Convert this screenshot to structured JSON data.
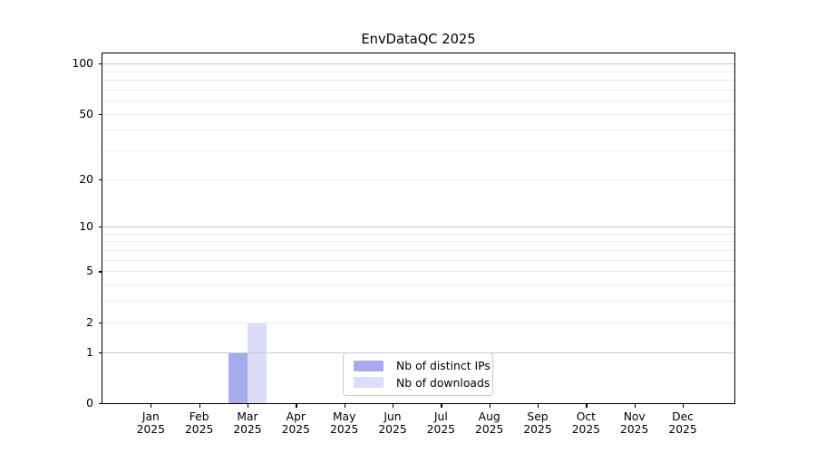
{
  "chart_data": {
    "type": "bar",
    "title": "EnvDataQC 2025",
    "categories": [
      "Jan 2025",
      "Feb 2025",
      "Mar 2025",
      "Apr 2025",
      "May 2025",
      "Jun 2025",
      "Jul 2025",
      "Aug 2025",
      "Sep 2025",
      "Oct 2025",
      "Nov 2025",
      "Dec 2025"
    ],
    "series": [
      {
        "name": "Nb of distinct IPs",
        "color": "#a8aaee",
        "values": [
          0,
          0,
          1,
          0,
          0,
          0,
          0,
          0,
          0,
          0,
          0,
          0
        ]
      },
      {
        "name": "Nb of downloads",
        "color": "#dcddf8",
        "values": [
          0,
          0,
          2,
          0,
          0,
          0,
          0,
          0,
          0,
          0,
          0,
          0
        ]
      }
    ],
    "xlabel": "",
    "ylabel": "",
    "y_scale": "log1p",
    "ylim": [
      0,
      115
    ],
    "y_ticks": [
      0,
      1,
      2,
      5,
      10,
      20,
      50,
      100
    ],
    "y_major_gridlines": [
      1,
      10,
      100
    ],
    "y_minor_gridlines": [
      2,
      3,
      4,
      5,
      6,
      7,
      8,
      9,
      20,
      30,
      40,
      50,
      60,
      70,
      80,
      90
    ],
    "grid": true,
    "legend_position": "lower center",
    "colors": {
      "major_grid": "#c9c9c9",
      "minor_grid": "#ececec",
      "axis": "#000000",
      "legend_border": "#cccccc",
      "background": "#ffffff"
    }
  }
}
